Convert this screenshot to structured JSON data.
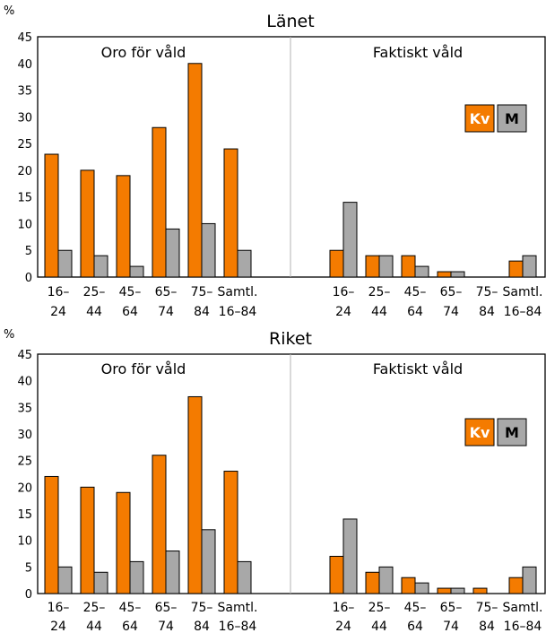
{
  "colors": {
    "kv": "#F47B00",
    "m": "#A8A8A8",
    "divider": "#B3B3B3",
    "frame": "#000000"
  },
  "chart_data": [
    {
      "type": "bar",
      "title": "Länet",
      "ylabel": "%",
      "ylim": [
        0,
        45
      ],
      "yticks": [
        "0",
        "5",
        "10",
        "15",
        "20",
        "25",
        "30",
        "35",
        "40",
        "45"
      ],
      "legend": {
        "placement": "right",
        "items": [
          "Kv",
          "M"
        ]
      },
      "groups": [
        {
          "label": "Oro för våld",
          "categories": [
            {
              "l1": "16–",
              "l2": "24"
            },
            {
              "l1": "25–",
              "l2": "44"
            },
            {
              "l1": "45–",
              "l2": "64"
            },
            {
              "l1": "65–",
              "l2": "74"
            },
            {
              "l1": "75–",
              "l2": "84"
            },
            {
              "l1": "Samtl.",
              "l2": "16–84"
            }
          ],
          "series": [
            {
              "name": "Kv",
              "values": [
                23,
                20,
                19,
                28,
                40,
                24
              ]
            },
            {
              "name": "M",
              "values": [
                5,
                4,
                2,
                9,
                10,
                5
              ]
            }
          ]
        },
        {
          "label": "Faktiskt våld",
          "categories": [
            {
              "l1": "16–",
              "l2": "24"
            },
            {
              "l1": "25–",
              "l2": "44"
            },
            {
              "l1": "45–",
              "l2": "64"
            },
            {
              "l1": "65–",
              "l2": "74"
            },
            {
              "l1": "75–",
              "l2": "84"
            },
            {
              "l1": "Samtl.",
              "l2": "16–84"
            }
          ],
          "series": [
            {
              "name": "Kv",
              "values": [
                5,
                4,
                4,
                1,
                0,
                3
              ]
            },
            {
              "name": "M",
              "values": [
                14,
                4,
                2,
                1,
                0,
                4
              ]
            }
          ]
        }
      ]
    },
    {
      "type": "bar",
      "title": "Riket",
      "ylabel": "%",
      "ylim": [
        0,
        45
      ],
      "yticks": [
        "0",
        "5",
        "10",
        "15",
        "20",
        "25",
        "30",
        "35",
        "40",
        "45"
      ],
      "legend": {
        "placement": "right",
        "items": [
          "Kv",
          "M"
        ]
      },
      "groups": [
        {
          "label": "Oro för våld",
          "categories": [
            {
              "l1": "16–",
              "l2": "24"
            },
            {
              "l1": "25–",
              "l2": "44"
            },
            {
              "l1": "45–",
              "l2": "64"
            },
            {
              "l1": "65–",
              "l2": "74"
            },
            {
              "l1": "75–",
              "l2": "84"
            },
            {
              "l1": "Samtl.",
              "l2": "16–84"
            }
          ],
          "series": [
            {
              "name": "Kv",
              "values": [
                22,
                20,
                19,
                26,
                37,
                23
              ]
            },
            {
              "name": "M",
              "values": [
                5,
                4,
                6,
                8,
                12,
                6
              ]
            }
          ]
        },
        {
          "label": "Faktiskt våld",
          "categories": [
            {
              "l1": "16–",
              "l2": "24"
            },
            {
              "l1": "25–",
              "l2": "44"
            },
            {
              "l1": "45–",
              "l2": "64"
            },
            {
              "l1": "65–",
              "l2": "74"
            },
            {
              "l1": "75–",
              "l2": "84"
            },
            {
              "l1": "Samtl.",
              "l2": "16–84"
            }
          ],
          "series": [
            {
              "name": "Kv",
              "values": [
                7,
                4,
                3,
                1,
                1,
                3
              ]
            },
            {
              "name": "M",
              "values": [
                14,
                5,
                2,
                1,
                0,
                5
              ]
            }
          ]
        }
      ]
    }
  ]
}
